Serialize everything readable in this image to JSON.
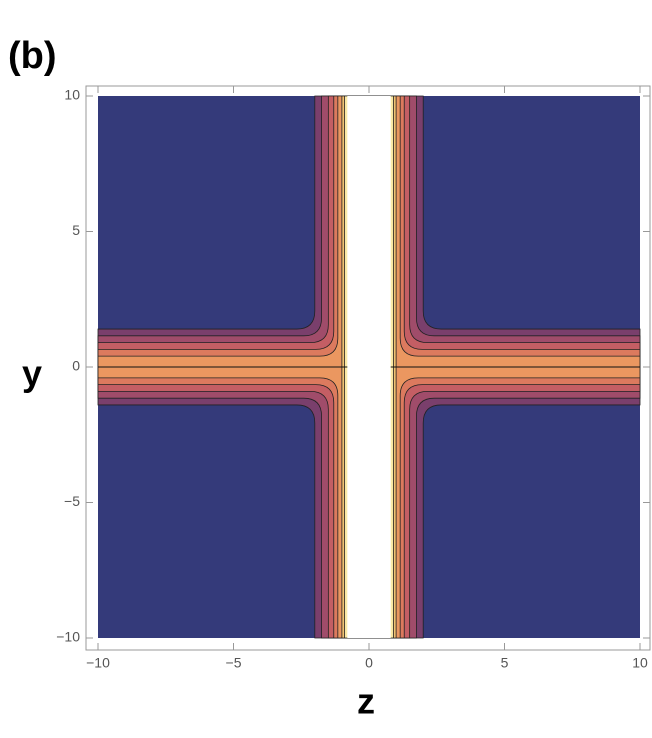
{
  "chart_data": {
    "type": "contour",
    "title": "(b)",
    "x_label": "z",
    "y_label": "y",
    "xlim": [
      -10,
      10
    ],
    "ylim": [
      -10,
      10
    ],
    "xticks": [
      {
        "value": -10,
        "label": "−10"
      },
      {
        "value": -5,
        "label": "−5"
      },
      0,
      5,
      10
    ],
    "yticks": [
      {
        "value": -10,
        "label": "−10"
      },
      {
        "value": -5,
        "label": "−5"
      },
      0,
      5,
      10
    ],
    "band_colors": [
      "#343a7a",
      "#7a3f6c",
      "#a04c6a",
      "#c45e64",
      "#dc7a5e",
      "#eb9760",
      "#f3c272",
      "#fae9a6",
      "#ffffff"
    ]
  }
}
